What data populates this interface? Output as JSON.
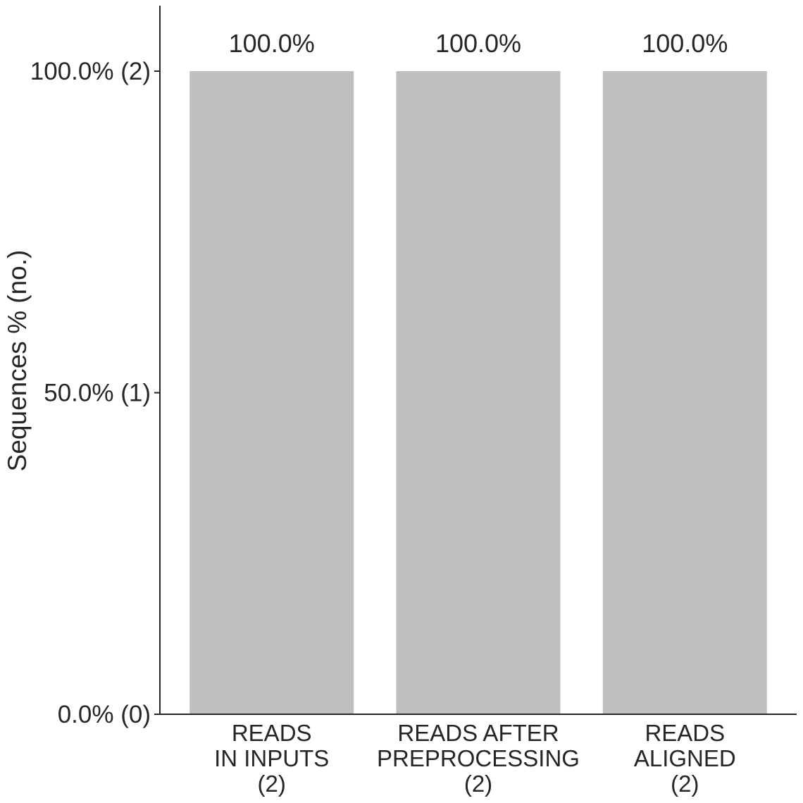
{
  "chart_data": {
    "type": "bar",
    "ylabel": "Sequences % (no.)",
    "xlabel": "",
    "ylim": [
      0,
      100
    ],
    "yticks": [
      {
        "value": 0,
        "label": "0.0% (0)"
      },
      {
        "value": 50,
        "label": "50.0% (1)"
      },
      {
        "value": 100,
        "label": "100.0% (2)"
      }
    ],
    "categories": [
      [
        "READS",
        "IN INPUTS",
        "(2)"
      ],
      [
        "READS AFTER",
        "PREPROCESSING",
        "(2)"
      ],
      [
        "READS",
        "ALIGNED",
        "(2)"
      ]
    ],
    "values": [
      100,
      100,
      100
    ],
    "value_labels": [
      "100.0%",
      "100.0%",
      "100.0%"
    ],
    "bar_color": "#bfbfbf",
    "axis_color": "#262626",
    "grid": false,
    "legend": "none"
  }
}
